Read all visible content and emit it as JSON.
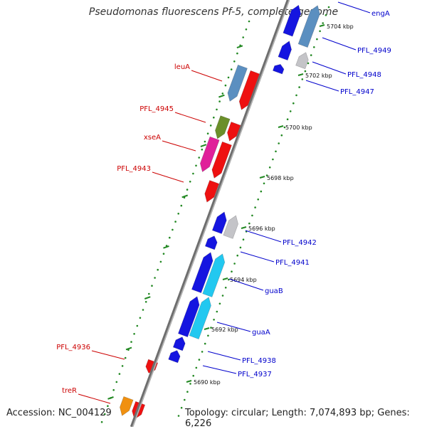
{
  "title": "Pseudomonas fluorescens Pf-5, complete genome",
  "footer": {
    "accession": "Accession: NC_004129",
    "summary": "Topology: circular; Length: 7,074,893 bp; Genes: 6,226"
  },
  "scale": {
    "ticks": [
      {
        "label": "5704 kbp"
      },
      {
        "label": "5702 kbp"
      },
      {
        "label": "5700 kbp"
      },
      {
        "label": "5698 kbp"
      },
      {
        "label": "5696 kbp"
      },
      {
        "label": "5694 kbp"
      },
      {
        "label": "5692 kbp"
      },
      {
        "label": "5690 kbp"
      }
    ]
  },
  "genes": {
    "forward_strand": [
      {
        "label": "engA",
        "color": "#0000cc"
      },
      {
        "label": "PFL_4949",
        "color": "#0000cc"
      },
      {
        "label": "PFL_4948",
        "color": "#0000cc"
      },
      {
        "label": "PFL_4947",
        "color": "#0000cc"
      },
      {
        "label": "PFL_4942",
        "color": "#0000cc"
      },
      {
        "label": "PFL_4941",
        "color": "#0000cc"
      },
      {
        "label": "guaB",
        "color": "#0000cc"
      },
      {
        "label": "guaA",
        "color": "#0000cc"
      },
      {
        "label": "PFL_4938",
        "color": "#0000cc"
      },
      {
        "label": "PFL_4937",
        "color": "#0000cc"
      }
    ],
    "reverse_strand": [
      {
        "label": "leuA",
        "color": "#cc0000"
      },
      {
        "label": "PFL_4945",
        "color": "#cc0000"
      },
      {
        "label": "xseA",
        "color": "#cc0000"
      },
      {
        "label": "PFL_4943",
        "color": "#cc0000"
      },
      {
        "label": "PFL_4936",
        "color": "#cc0000"
      },
      {
        "label": "treR",
        "color": "#cc0000"
      }
    ]
  },
  "colors": {
    "forward_cds": "#1515e0",
    "reverse_cds": "#ee1111",
    "backbone": "#888888",
    "dots": "#228822",
    "cog_blue": "#5b8fc0",
    "cog_cyan": "#22c8f0",
    "cog_gray": "#c4c4c8",
    "cog_green": "#6b8f2a",
    "cog_magenta": "#e0209a",
    "cog_orange": "#f09010"
  }
}
